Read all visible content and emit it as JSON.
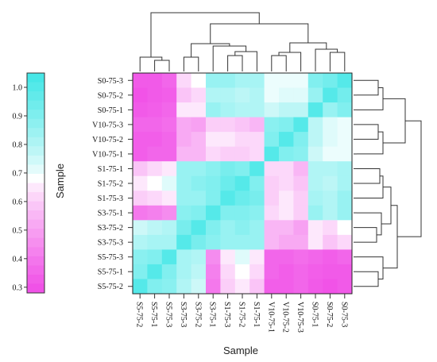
{
  "chart_data": {
    "type": "heatmap",
    "title": "",
    "xlabel": "Sample",
    "ylabel": "",
    "colorbar_label": "Sample",
    "row_labels": [
      "S0-75-3",
      "S0-75-2",
      "S0-75-1",
      "V10-75-3",
      "V10-75-2",
      "V10-75-1",
      "S1-75-1",
      "S1-75-2",
      "S1-75-3",
      "S3-75-1",
      "S3-75-2",
      "S3-75-3",
      "S5-75-3",
      "S5-75-1",
      "S5-75-2"
    ],
    "col_labels": [
      "S5-75-2",
      "S5-75-1",
      "S5-75-3",
      "S3-75-3",
      "S3-75-2",
      "S3-75-1",
      "S1-75-3",
      "S1-75-2",
      "S1-75-1",
      "V10-75-1",
      "V10-75-2",
      "V10-75-3",
      "S0-75-1",
      "S0-75-2",
      "S0-75-3"
    ],
    "colorbar_ticks": [
      "1.0",
      "0.9",
      "0.8",
      "0.7",
      "0.6",
      "0.5",
      "0.4",
      "0.3"
    ],
    "colorbar_range": [
      0.28,
      1.05
    ],
    "colors": {
      "high": "#40e6e6",
      "mid": "#ffffff",
      "low": "#f04ce6"
    },
    "values": [
      [
        0.32,
        0.32,
        0.35,
        0.62,
        0.68,
        0.85,
        0.85,
        0.82,
        0.82,
        0.7,
        0.7,
        0.7,
        0.9,
        0.93,
        1.0
      ],
      [
        0.3,
        0.32,
        0.33,
        0.58,
        0.62,
        0.8,
        0.8,
        0.78,
        0.8,
        0.7,
        0.72,
        0.72,
        0.85,
        1.0,
        0.93
      ],
      [
        0.32,
        0.33,
        0.35,
        0.65,
        0.65,
        0.85,
        0.82,
        0.8,
        0.8,
        0.75,
        0.78,
        0.78,
        1.0,
        0.85,
        0.9
      ],
      [
        0.35,
        0.35,
        0.37,
        0.52,
        0.5,
        0.6,
        0.6,
        0.58,
        0.55,
        0.88,
        0.9,
        1.0,
        0.78,
        0.72,
        0.7
      ],
      [
        0.33,
        0.33,
        0.35,
        0.52,
        0.55,
        0.65,
        0.65,
        0.62,
        0.62,
        0.9,
        1.0,
        0.9,
        0.78,
        0.72,
        0.7
      ],
      [
        0.33,
        0.35,
        0.35,
        0.55,
        0.55,
        0.62,
        0.6,
        0.6,
        0.62,
        1.0,
        0.9,
        0.88,
        0.75,
        0.7,
        0.7
      ],
      [
        0.58,
        0.62,
        0.65,
        0.85,
        0.85,
        0.88,
        0.92,
        0.9,
        1.0,
        0.62,
        0.62,
        0.55,
        0.8,
        0.8,
        0.82
      ],
      [
        0.65,
        0.68,
        0.72,
        0.85,
        0.88,
        0.9,
        0.95,
        1.0,
        0.9,
        0.6,
        0.62,
        0.58,
        0.8,
        0.78,
        0.82
      ],
      [
        0.6,
        0.62,
        0.65,
        0.85,
        0.85,
        0.9,
        1.0,
        0.95,
        0.92,
        0.6,
        0.65,
        0.6,
        0.82,
        0.8,
        0.85
      ],
      [
        0.4,
        0.42,
        0.45,
        0.88,
        0.9,
        1.0,
        0.9,
        0.9,
        0.88,
        0.62,
        0.65,
        0.6,
        0.85,
        0.8,
        0.85
      ],
      [
        0.75,
        0.78,
        0.8,
        0.92,
        1.0,
        0.9,
        0.85,
        0.88,
        0.85,
        0.55,
        0.55,
        0.5,
        0.65,
        0.62,
        0.68
      ],
      [
        0.8,
        0.82,
        0.82,
        1.0,
        0.92,
        0.88,
        0.85,
        0.85,
        0.85,
        0.55,
        0.52,
        0.52,
        0.65,
        0.58,
        0.62
      ],
      [
        0.88,
        0.9,
        1.0,
        0.82,
        0.8,
        0.45,
        0.65,
        0.72,
        0.65,
        0.35,
        0.35,
        0.37,
        0.35,
        0.33,
        0.35
      ],
      [
        0.9,
        1.0,
        0.9,
        0.82,
        0.78,
        0.42,
        0.62,
        0.68,
        0.62,
        0.35,
        0.33,
        0.35,
        0.33,
        0.32,
        0.32
      ],
      [
        1.0,
        0.9,
        0.88,
        0.8,
        0.75,
        0.4,
        0.6,
        0.65,
        0.58,
        0.33,
        0.33,
        0.35,
        0.32,
        0.3,
        0.32
      ]
    ]
  }
}
